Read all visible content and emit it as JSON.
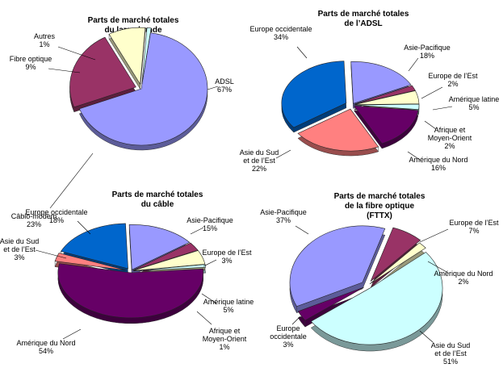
{
  "chart_data": [
    {
      "type": "pie",
      "title": [
        "Parts de marché totales",
        "du large bande"
      ],
      "slices": [
        {
          "label": [
            "ADSL"
          ],
          "pct_label": "67%",
          "value": 67,
          "color": "#9999ff"
        },
        {
          "label": [
            "Câblo-modem"
          ],
          "pct_label": "23%",
          "value": 23,
          "color": "#993366"
        },
        {
          "label": [
            "Fibre optique"
          ],
          "pct_label": "9%",
          "value": 9,
          "color": "#ffffcc"
        },
        {
          "label": [
            "Autres"
          ],
          "pct_label": "1%",
          "value": 1,
          "color": "#ccffff"
        }
      ]
    },
    {
      "type": "pie",
      "title": [
        "Parts de marché totales",
        "de l’ADSL"
      ],
      "slices": [
        {
          "label": [
            "Asie-Pacifique"
          ],
          "pct_label": "18%",
          "value": 18,
          "color": "#9999ff"
        },
        {
          "label": [
            "Europe de l’Est"
          ],
          "pct_label": "2%",
          "value": 2,
          "color": "#993366"
        },
        {
          "label": [
            "Amérique latine"
          ],
          "pct_label": "5%",
          "value": 5,
          "color": "#ffffcc"
        },
        {
          "label": [
            "Afrique et",
            "Moyen-Orient"
          ],
          "pct_label": "2%",
          "value": 2,
          "color": "#ccffff"
        },
        {
          "label": [
            "Amérique du Nord"
          ],
          "pct_label": "16%",
          "value": 16,
          "color": "#660066"
        },
        {
          "label": [
            "Asie du Sud",
            "et de l’Est"
          ],
          "pct_label": "22%",
          "value": 22,
          "color": "#ff8080"
        },
        {
          "label": [
            "Europe occidentale"
          ],
          "pct_label": "34%",
          "value": 34,
          "color": "#0066cc"
        }
      ]
    },
    {
      "type": "pie",
      "title": [
        "Parts de marché totales",
        "du câble"
      ],
      "slices": [
        {
          "label": [
            "Asie-Pacifique"
          ],
          "pct_label": "15%",
          "value": 15,
          "color": "#9999ff"
        },
        {
          "label": [
            "Europe de l’Est"
          ],
          "pct_label": "3%",
          "value": 3,
          "color": "#993366"
        },
        {
          "label": [
            "Amérique latine"
          ],
          "pct_label": "5%",
          "value": 5,
          "color": "#ffffcc"
        },
        {
          "label": [
            "Afrique et",
            "Moyen-Orient"
          ],
          "pct_label": "1%",
          "value": 1,
          "color": "#ccffff"
        },
        {
          "label": [
            "Amérique du Nord"
          ],
          "pct_label": "54%",
          "value": 54,
          "color": "#660066"
        },
        {
          "label": [
            "Asie du Sud",
            "et de l’Est"
          ],
          "pct_label": "3%",
          "value": 3,
          "color": "#ff8080"
        },
        {
          "label": [
            "Europe occidentale"
          ],
          "pct_label": "18%",
          "value": 18,
          "color": "#0066cc"
        }
      ]
    },
    {
      "type": "pie",
      "title": [
        "Parts de marché totales",
        "de la fibre optique",
        "(FTTX)"
      ],
      "slices": [
        {
          "label": [
            "Europe de l’Est"
          ],
          "pct_label": "7%",
          "value": 7,
          "color": "#993366"
        },
        {
          "label": [
            "Amérique du Nord"
          ],
          "pct_label": "2%",
          "value": 2,
          "color": "#ffffcc"
        },
        {
          "label": [
            "Asie du Sud",
            "et de l’Est"
          ],
          "pct_label": "51%",
          "value": 51,
          "color": "#ccffff"
        },
        {
          "label": [
            "Europe",
            "occidentale"
          ],
          "pct_label": "3%",
          "value": 3,
          "color": "#660066"
        },
        {
          "label": [
            "Asie-Pacifique"
          ],
          "pct_label": "37%",
          "value": 37,
          "color": "#9999ff"
        }
      ]
    }
  ]
}
